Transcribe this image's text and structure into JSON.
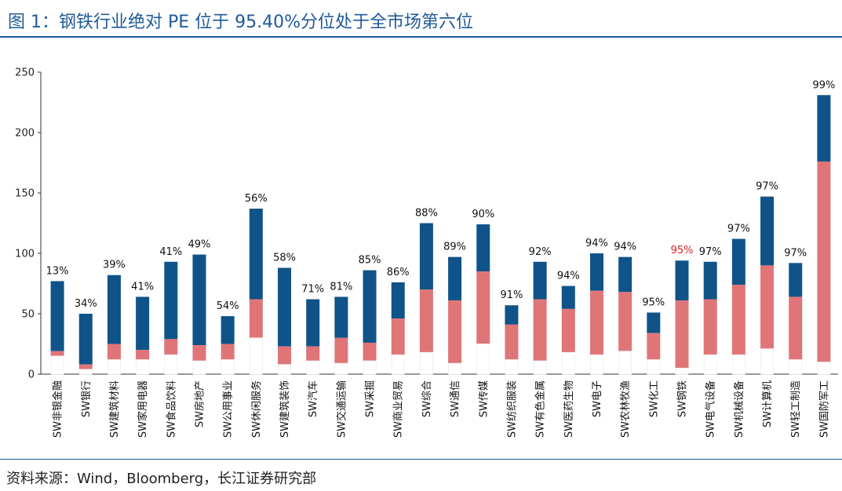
{
  "title": "图  1：钢铁行业绝对 PE 位于 95.40%分位处于全市场第六位",
  "source": "资料来源：Wind，Bloomberg，长江证券研究部",
  "colors": {
    "title": "#1f5a9a",
    "upper": "#0f5389",
    "middle": "#e07578",
    "lower": "#ffffff",
    "highlight_label": "#e02020"
  },
  "chart_data": {
    "type": "bar",
    "stacked": true,
    "ylim": [
      0,
      250
    ],
    "yticks": [
      "0",
      "50",
      "100",
      "150",
      "200",
      "250"
    ],
    "yticks_values": [
      0,
      50,
      100,
      150,
      200,
      250
    ],
    "grid": false,
    "highlight_category": "SW钢铁",
    "categories": [
      "SW非银金融",
      "SW银行",
      "SW建筑材料",
      "SW家用电器",
      "SW食品饮料",
      "SW房地产",
      "SW公用事业",
      "SW休闲服务",
      "SW建筑装饰",
      "SW汽车",
      "SW交通运输",
      "SW采掘",
      "SW商业贸易",
      "SW综合",
      "SW通信",
      "SW传媒",
      "SW纺织服装",
      "SW有色金属",
      "SW医药生物",
      "SW电子",
      "SW农林牧渔",
      "SW化工",
      "SW钢铁",
      "SW电气设备",
      "SW机械设备",
      "SW计算机",
      "SW轻工制造",
      "SW国防军工"
    ],
    "percent_labels": [
      "13%",
      "34%",
      "39%",
      "41%",
      "41%",
      "49%",
      "54%",
      "56%",
      "58%",
      "71%",
      "81%",
      "85%",
      "86%",
      "88%",
      "89%",
      "90%",
      "91%",
      "92%",
      "94%",
      "94%",
      "94%",
      "95%",
      "95%",
      "97%",
      "97%",
      "97%",
      "97%",
      "99%"
    ],
    "lower": [
      15,
      4,
      12,
      12,
      16,
      11,
      12,
      30,
      8,
      11,
      9,
      11,
      16,
      18,
      9,
      25,
      12,
      11,
      18,
      16,
      19,
      12,
      5,
      16,
      16,
      21,
      12,
      10
    ],
    "middle": [
      19,
      8,
      25,
      20,
      29,
      24,
      25,
      62,
      23,
      23,
      30,
      26,
      46,
      70,
      61,
      85,
      41,
      62,
      54,
      69,
      68,
      34,
      61,
      62,
      74,
      90,
      64,
      176
    ],
    "total": [
      77,
      50,
      82,
      64,
      93,
      99,
      48,
      137,
      88,
      62,
      64,
      86,
      76,
      125,
      97,
      124,
      57,
      93,
      73,
      100,
      97,
      51,
      94,
      93,
      112,
      147,
      92,
      231
    ]
  }
}
